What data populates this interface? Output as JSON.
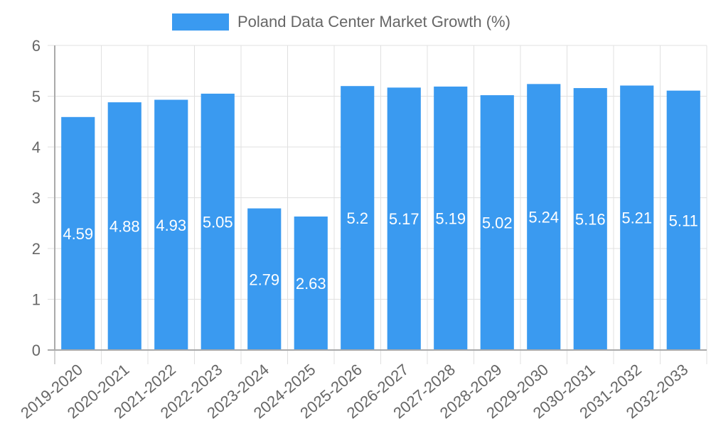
{
  "chart_data": {
    "type": "bar",
    "title": "",
    "legend": [
      "Poland Data Center Market Growth (%)"
    ],
    "legend_position": "top",
    "categories": [
      "2019-2020",
      "2020-2021",
      "2021-2022",
      "2022-2023",
      "2023-2024",
      "2024-2025",
      "2025-2026",
      "2026-2027",
      "2027-2028",
      "2028-2029",
      "2029-2030",
      "2030-2031",
      "2031-2032",
      "2032-2033"
    ],
    "series": [
      {
        "name": "Poland Data Center Market Growth (%)",
        "color": "#3a9af0",
        "values": [
          4.59,
          4.88,
          4.93,
          5.05,
          2.79,
          2.63,
          5.2,
          5.17,
          5.19,
          5.02,
          5.24,
          5.16,
          5.21,
          5.11
        ]
      }
    ],
    "xlabel": "",
    "ylabel": "",
    "ylim": [
      0,
      6
    ],
    "yticks": [
      0,
      1,
      2,
      3,
      4,
      5,
      6
    ],
    "grid": true,
    "data_labels": true
  },
  "legend": {
    "label": "Poland Data Center Market Growth (%)",
    "color": "#3a9af0"
  }
}
